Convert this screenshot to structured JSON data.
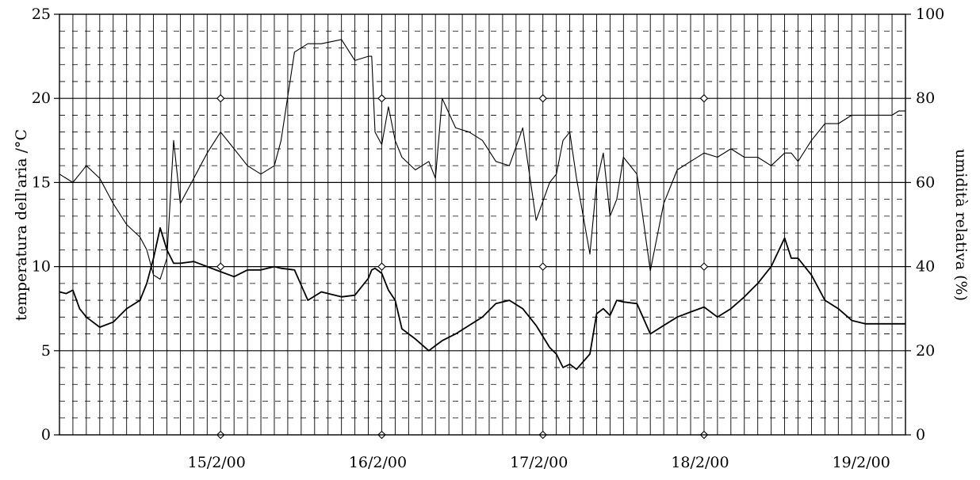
{
  "chart_data": {
    "type": "line",
    "title": "",
    "xlabel": "",
    "ylabel": "temperatura dell'aria /°C",
    "y2label": "umidità relativa (%)",
    "x_tick_labels": [
      "15/2/00",
      "16/2/00",
      "17/2/00",
      "18/2/00",
      "19/2/00"
    ],
    "xlim": [
      "2000-02-14 12:00",
      "2000-02-19 18:00"
    ],
    "ylim": [
      0,
      25
    ],
    "y2lim": [
      0,
      100
    ],
    "y_ticks": [
      0,
      5,
      10,
      15,
      20,
      25
    ],
    "y2_ticks": [
      0,
      20,
      40,
      60,
      80,
      100
    ],
    "grid": "major horizontal solid every 5 °C, minor horizontal dashed every 1 °C, vertical lines every 2 h",
    "legend": "none",
    "day_markers": [
      "2000-02-15 12:00",
      "2000-02-16 12:00",
      "2000-02-17 12:00",
      "2000-02-18 12:00"
    ],
    "day_marker_levels": [
      0,
      10,
      20
    ],
    "series": [
      {
        "axis": "left",
        "unit": "°C",
        "x": [
          "2000-02-14 12:00",
          "2000-02-14 13:00",
          "2000-02-14 14:00",
          "2000-02-14 15:00",
          "2000-02-14 16:00",
          "2000-02-14 18:00",
          "2000-02-14 20:00",
          "2000-02-14 22:00",
          "2000-02-15 00:00",
          "2000-02-15 01:00",
          "2000-02-15 02:00",
          "2000-02-15 03:00",
          "2000-02-15 04:00",
          "2000-02-15 05:00",
          "2000-02-15 06:00",
          "2000-02-15 08:00",
          "2000-02-15 10:00",
          "2000-02-15 12:00",
          "2000-02-15 14:00",
          "2000-02-15 16:00",
          "2000-02-15 18:00",
          "2000-02-15 20:00",
          "2000-02-15 21:00",
          "2000-02-15 23:00",
          "2000-02-16 01:00",
          "2000-02-16 03:00",
          "2000-02-16 06:00",
          "2000-02-16 08:00",
          "2000-02-16 10:00",
          "2000-02-16 10:30",
          "2000-02-16 11:00",
          "2000-02-16 12:00",
          "2000-02-16 13:00",
          "2000-02-16 14:00",
          "2000-02-16 15:00",
          "2000-02-16 17:00",
          "2000-02-16 19:00",
          "2000-02-16 20:00",
          "2000-02-16 21:00",
          "2000-02-16 23:00",
          "2000-02-17 01:00",
          "2000-02-17 03:00",
          "2000-02-17 05:00",
          "2000-02-17 07:00",
          "2000-02-17 09:00",
          "2000-02-17 11:00",
          "2000-02-17 13:00",
          "2000-02-17 14:00",
          "2000-02-17 15:00",
          "2000-02-17 16:00",
          "2000-02-17 17:00",
          "2000-02-17 19:00",
          "2000-02-17 20:00",
          "2000-02-17 21:00",
          "2000-02-17 22:00",
          "2000-02-17 23:00",
          "2000-02-18 00:00",
          "2000-02-18 02:00",
          "2000-02-18 04:00",
          "2000-02-18 06:00",
          "2000-02-18 08:00",
          "2000-02-18 10:00",
          "2000-02-18 12:00",
          "2000-02-18 14:00",
          "2000-02-18 16:00",
          "2000-02-18 18:00",
          "2000-02-18 20:00",
          "2000-02-18 22:00",
          "2000-02-19 00:00",
          "2000-02-19 01:00",
          "2000-02-19 02:00",
          "2000-02-19 04:00",
          "2000-02-19 06:00",
          "2000-02-19 08:00",
          "2000-02-19 10:00",
          "2000-02-19 12:00",
          "2000-02-19 14:00",
          "2000-02-19 16:00",
          "2000-02-19 17:00",
          "2000-02-19 18:00"
        ],
        "values": [
          8.5,
          8.4,
          8.6,
          7.5,
          7.0,
          6.4,
          6.7,
          7.5,
          8.0,
          9.0,
          10.5,
          12.3,
          11.0,
          10.2,
          10.2,
          10.3,
          10.0,
          9.7,
          9.4,
          9.8,
          9.8,
          10.0,
          9.9,
          9.8,
          8.0,
          8.5,
          8.2,
          8.3,
          9.3,
          9.8,
          9.9,
          9.6,
          8.6,
          8.0,
          6.3,
          5.7,
          5.0,
          5.3,
          5.6,
          6.0,
          6.5,
          7.0,
          7.8,
          8.0,
          7.5,
          6.5,
          5.2,
          4.8,
          4.0,
          4.2,
          3.9,
          4.8,
          7.2,
          7.5,
          7.1,
          8.0,
          7.9,
          7.8,
          6.0,
          6.5,
          7.0,
          7.3,
          7.6,
          7.0,
          7.5,
          8.2,
          9.0,
          10.0,
          11.7,
          10.5,
          10.5,
          9.5,
          8.0,
          7.5,
          6.8,
          6.6,
          6.6,
          6.6,
          6.6,
          6.6
        ]
      },
      {
        "axis": "right",
        "unit": "%",
        "x": [
          "2000-02-14 12:00",
          "2000-02-14 13:00",
          "2000-02-14 14:00",
          "2000-02-14 15:00",
          "2000-02-14 16:00",
          "2000-02-14 18:00",
          "2000-02-14 20:00",
          "2000-02-14 22:00",
          "2000-02-15 00:00",
          "2000-02-15 01:00",
          "2000-02-15 02:00",
          "2000-02-15 03:00",
          "2000-02-15 04:00",
          "2000-02-15 05:00",
          "2000-02-15 06:00",
          "2000-02-15 08:00",
          "2000-02-15 10:00",
          "2000-02-15 12:00",
          "2000-02-15 14:00",
          "2000-02-15 16:00",
          "2000-02-15 18:00",
          "2000-02-15 20:00",
          "2000-02-15 21:00",
          "2000-02-15 23:00",
          "2000-02-16 01:00",
          "2000-02-16 03:00",
          "2000-02-16 06:00",
          "2000-02-16 08:00",
          "2000-02-16 10:00",
          "2000-02-16 10:30",
          "2000-02-16 11:00",
          "2000-02-16 12:00",
          "2000-02-16 13:00",
          "2000-02-16 14:00",
          "2000-02-16 15:00",
          "2000-02-16 17:00",
          "2000-02-16 19:00",
          "2000-02-16 20:00",
          "2000-02-16 21:00",
          "2000-02-16 23:00",
          "2000-02-17 01:00",
          "2000-02-17 03:00",
          "2000-02-17 05:00",
          "2000-02-17 07:00",
          "2000-02-17 09:00",
          "2000-02-17 11:00",
          "2000-02-17 13:00",
          "2000-02-17 14:00",
          "2000-02-17 15:00",
          "2000-02-17 16:00",
          "2000-02-17 17:00",
          "2000-02-17 19:00",
          "2000-02-17 20:00",
          "2000-02-17 21:00",
          "2000-02-17 22:00",
          "2000-02-17 23:00",
          "2000-02-18 00:00",
          "2000-02-18 02:00",
          "2000-02-18 04:00",
          "2000-02-18 06:00",
          "2000-02-18 08:00",
          "2000-02-18 10:00",
          "2000-02-18 12:00",
          "2000-02-18 14:00",
          "2000-02-18 16:00",
          "2000-02-18 18:00",
          "2000-02-18 20:00",
          "2000-02-18 22:00",
          "2000-02-19 00:00",
          "2000-02-19 01:00",
          "2000-02-19 02:00",
          "2000-02-19 04:00",
          "2000-02-19 06:00",
          "2000-02-19 08:00",
          "2000-02-19 10:00",
          "2000-02-19 12:00",
          "2000-02-19 14:00",
          "2000-02-19 16:00",
          "2000-02-19 17:00",
          "2000-02-19 18:00"
        ],
        "values": [
          62,
          61,
          60,
          62,
          64,
          61,
          55,
          50,
          47,
          44,
          38,
          37,
          42,
          70,
          55,
          61,
          67,
          72,
          68,
          64,
          62,
          64,
          70,
          91,
          93,
          93,
          94,
          89,
          90,
          90,
          72,
          69,
          78,
          70,
          66,
          63,
          65,
          61,
          80,
          73,
          72,
          70,
          65,
          64,
          73,
          51,
          60,
          62,
          70,
          72,
          61,
          43,
          60,
          67,
          52,
          56,
          66,
          62,
          39,
          55,
          63,
          65,
          67,
          66,
          68,
          66,
          66,
          64,
          67,
          67,
          65,
          70,
          74,
          74,
          76,
          76,
          76,
          76,
          77,
          77
        ]
      }
    ]
  }
}
